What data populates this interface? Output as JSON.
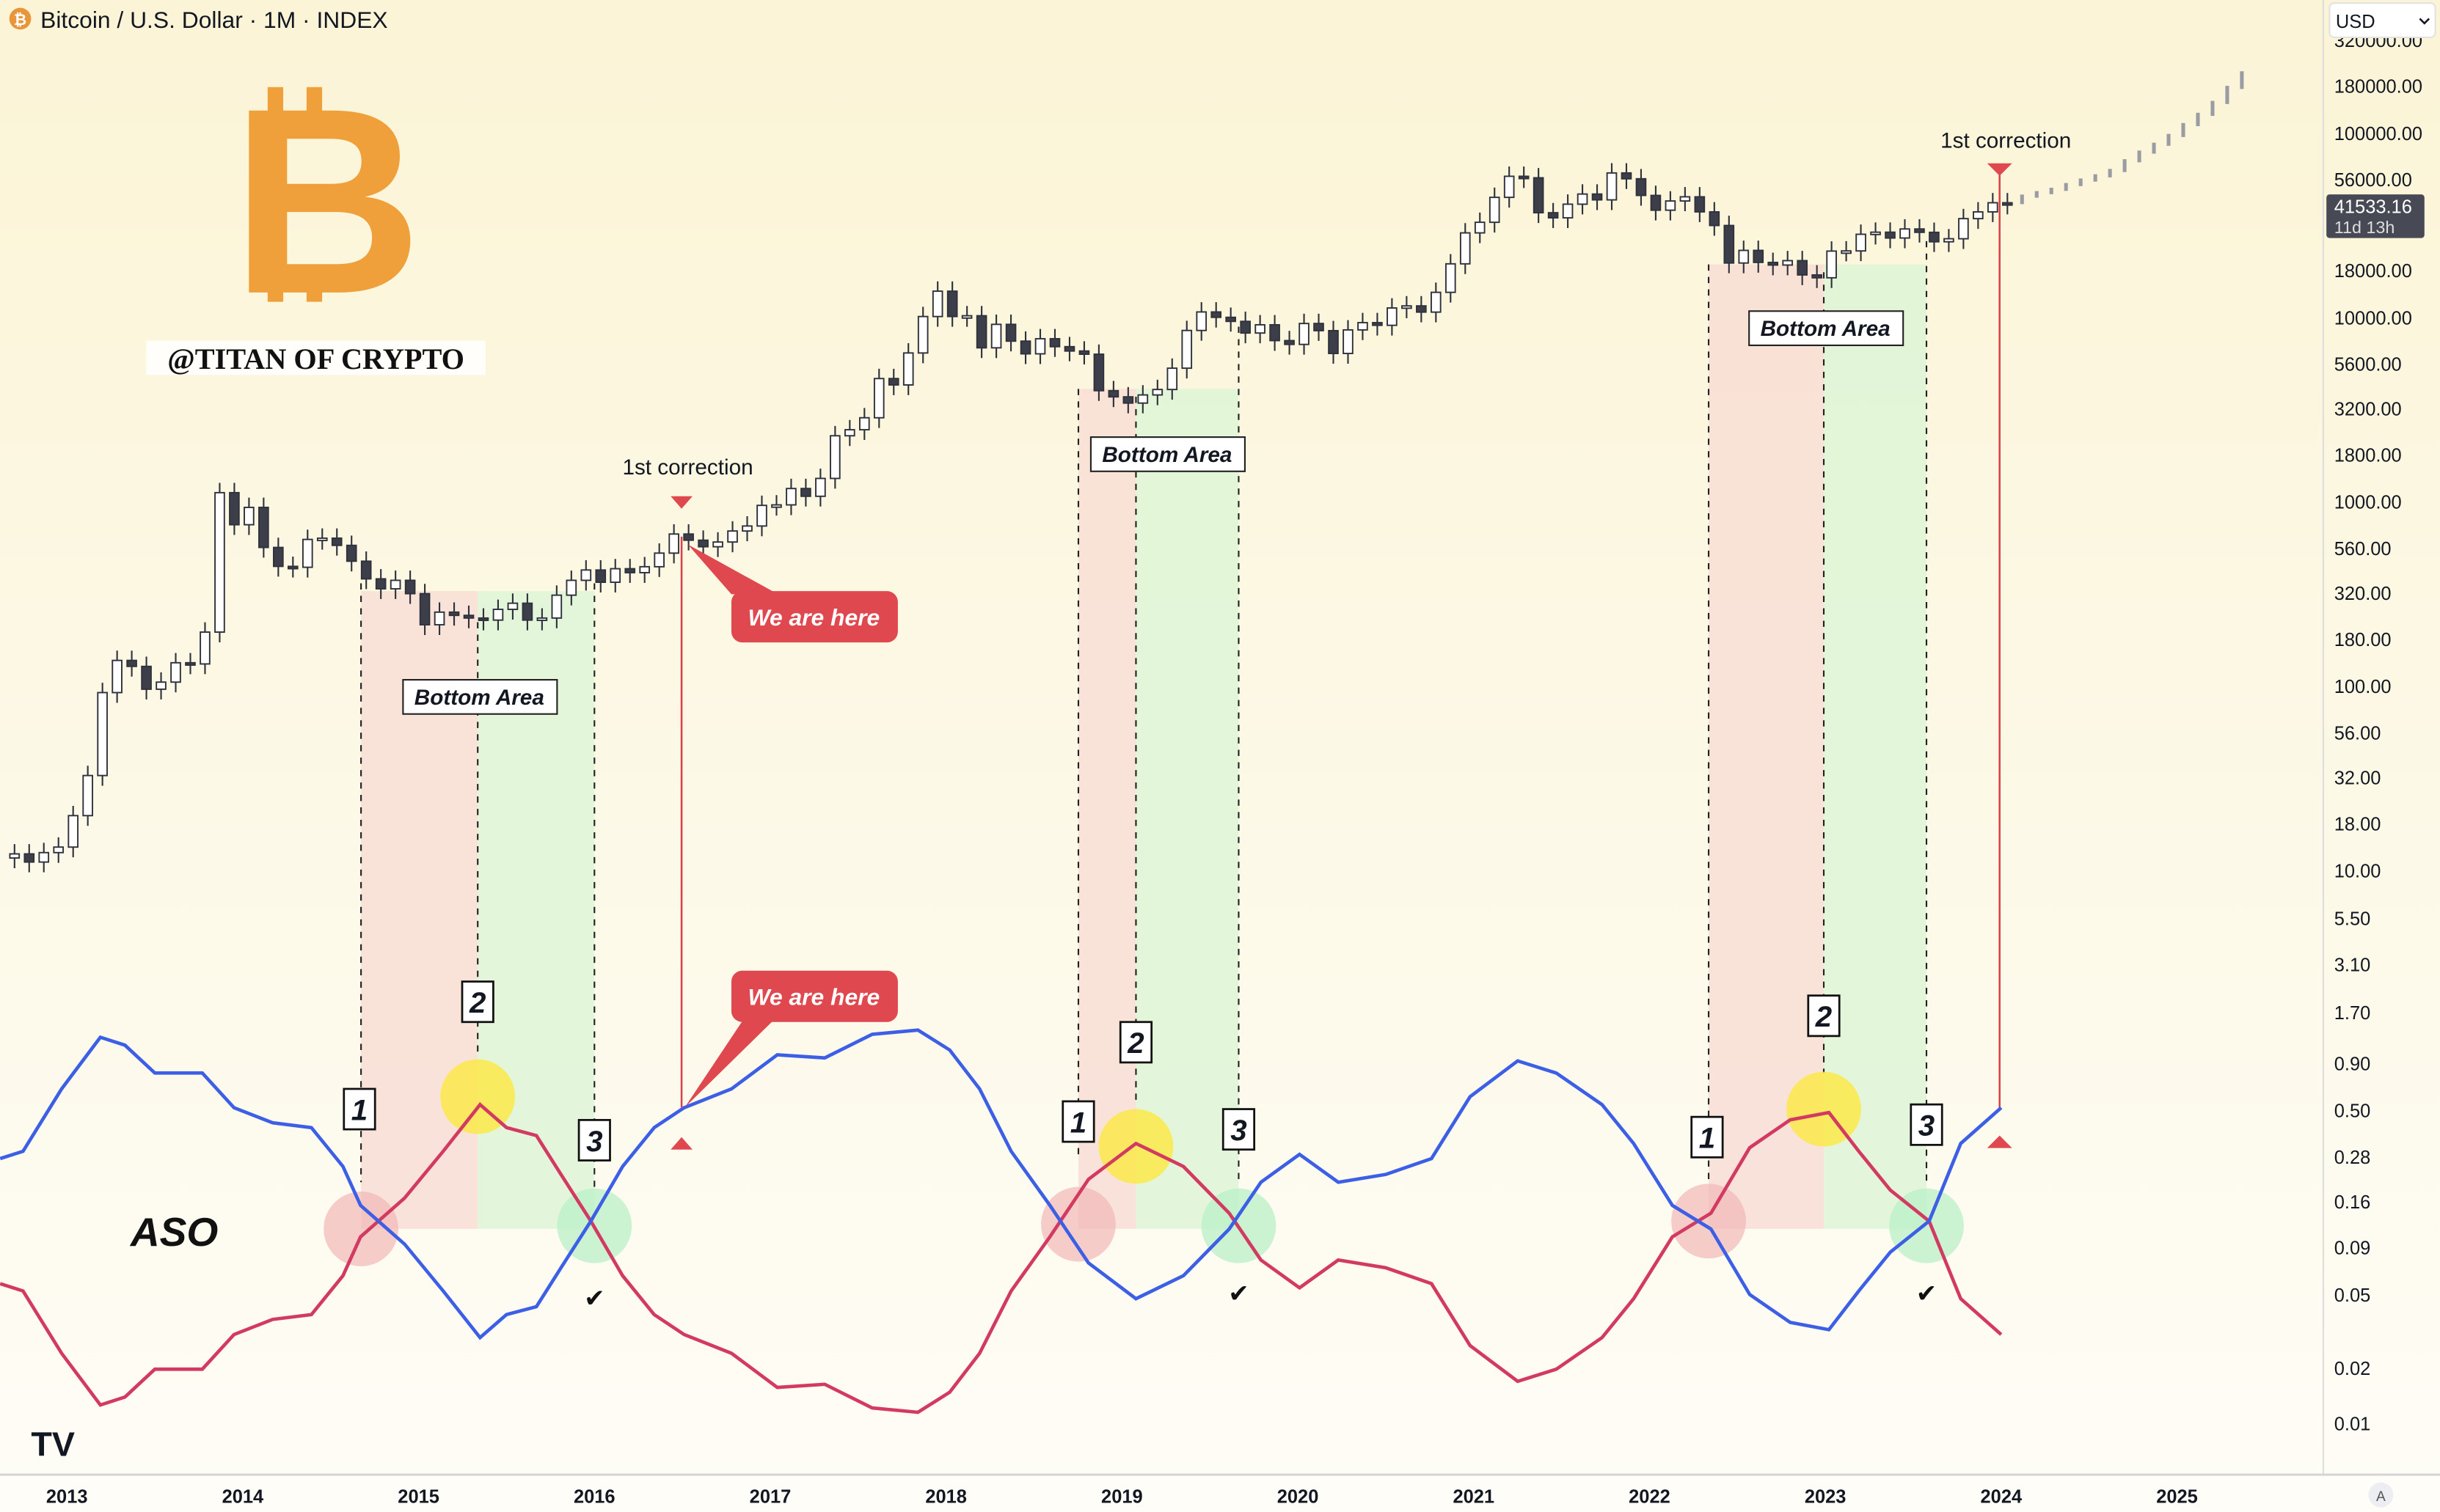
{
  "header": {
    "symbol_title": "Bitcoin / U.S. Dollar · 1M · INDEX",
    "symbol_icon": "bitcoin-icon"
  },
  "currency_select": {
    "value": "USD"
  },
  "branding": {
    "logo_letter": "B",
    "handle": "@TITAN OF CRYPTO"
  },
  "indicator_label": "ASO",
  "price_tag": {
    "price": "41533.16",
    "countdown": "11d 13h"
  },
  "colors": {
    "bulls": "#3d5fe6",
    "bears": "#d33a62",
    "alert": "#e0484f",
    "bear_zone": "#f8d9d3",
    "bull_zone": "#d9f5d6",
    "up_candle": "#ffffff",
    "down_candle": "#3c3f4a",
    "background": "#fbf5d8"
  },
  "annotations": {
    "first_correction": "1st correction",
    "we_are_here": "We are here",
    "bottom_area": "Bottom Area",
    "steps": [
      "1",
      "2",
      "3"
    ],
    "check": "✔"
  },
  "chart_data": {
    "type": "candlestick",
    "scale": "log",
    "price_axis_labels": [
      "320000.00",
      "180000.00",
      "100000.00",
      "56000.00",
      "18000.00",
      "10000.00",
      "5600.00",
      "3200.00",
      "1800.00",
      "1000.00",
      "560.00",
      "320.00",
      "180.00",
      "100.00",
      "56.00",
      "32.00",
      "18.00",
      "10.00",
      "5.50",
      "3.10",
      "1.70",
      "0.90",
      "0.50",
      "0.28",
      "0.16",
      "0.09",
      "0.05",
      "0.02",
      "0.01"
    ],
    "time_axis_labels": [
      "2013",
      "2014",
      "2015",
      "2016",
      "2017",
      "2018",
      "2019",
      "2020",
      "2021",
      "2022",
      "2023",
      "2024",
      "2025"
    ],
    "monthly_start": "2012-09",
    "monthly_closes": [
      12.4,
      11.2,
      12.6,
      13.5,
      20,
      33,
      93,
      139,
      129,
      97,
      106,
      135,
      133,
      198,
      1130,
      757,
      940,
      570,
      450,
      445,
      630,
      640,
      585,
      480,
      385,
      340,
      378,
      320,
      217,
      254,
      244,
      236,
      230,
      263,
      284,
      230,
      236,
      314,
      378,
      430,
      369,
      437,
      416,
      448,
      531,
      674,
      624,
      575,
      610,
      700,
      745,
      964,
      970,
      1190,
      1080,
      1350,
      2300,
      2480,
      2880,
      4700,
      4340,
      6470,
      10200,
      14000,
      10200,
      10300,
      6900,
      9250,
      7500,
      6400,
      7730,
      7000,
      6630,
      6370,
      4040,
      3740,
      3460,
      3830,
      4100,
      5350,
      8570,
      10800,
      10100,
      9600,
      8300,
      9200,
      7550,
      7200,
      9350,
      8550,
      6430,
      8630,
      9450,
      9140,
      11350,
      11650,
      10780,
      13800,
      19700,
      29000,
      33100,
      45200,
      58800,
      57700,
      37300,
      35000,
      41500,
      47100,
      43800,
      61300,
      57000,
      46300,
      38500,
      43200,
      45500,
      37700,
      31800,
      19900,
      23300,
      20050,
      19400,
      20500,
      17150,
      16550,
      23100,
      23150,
      28500,
      29250,
      27200,
      30450,
      29200,
      25950,
      26950,
      34650,
      37700,
      42250,
      41533
    ],
    "projection_closes": [
      45000,
      47000,
      49000,
      52000,
      55000,
      58000,
      62000,
      70000,
      78000,
      86000,
      96000,
      110000,
      125000,
      145000,
      175000,
      210000
    ],
    "aso": {
      "dates": [
        2012.62,
        2012.75,
        2012.97,
        2013.19,
        2013.33,
        2013.5,
        2013.77,
        2013.95,
        2014.17,
        2014.39,
        2014.57,
        2014.67,
        2014.92,
        2015.14,
        2015.35,
        2015.5,
        2015.67,
        2015.81,
        2015.98,
        2016.16,
        2016.34,
        2016.51,
        2016.78,
        2017.04,
        2017.31,
        2017.58,
        2017.84,
        2018.02,
        2018.19,
        2018.37,
        2018.59,
        2018.81,
        2019.08,
        2019.35,
        2019.61,
        2019.79,
        2020.01,
        2020.23,
        2020.5,
        2020.76,
        2020.98,
        2021.25,
        2021.47,
        2021.73,
        2021.91,
        2022.13,
        2022.35,
        2022.57,
        2022.8,
        2023.02,
        2023.19,
        2023.37,
        2023.59,
        2023.77,
        2024.0
      ],
      "bulls": [
        60.3,
        61.5,
        71.8,
        80.3,
        79.0,
        74.4,
        74.4,
        68.7,
        66.2,
        65.4,
        59.0,
        52.6,
        46.2,
        38.5,
        30.8,
        34.6,
        35.9,
        42.3,
        50.0,
        59.0,
        65.4,
        68.7,
        71.8,
        77.4,
        76.9,
        80.8,
        81.5,
        78.2,
        71.8,
        61.5,
        52.6,
        43.1,
        37.2,
        41.0,
        48.7,
        56.4,
        61.0,
        56.4,
        57.7,
        60.3,
        70.5,
        76.4,
        74.4,
        69.2,
        62.8,
        52.6,
        48.7,
        37.9,
        33.3,
        32.1,
        38.5,
        44.9,
        50.0,
        62.8,
        68.7
      ],
      "bears": [
        39.7,
        38.5,
        28.2,
        19.7,
        21.0,
        25.6,
        25.6,
        31.3,
        33.8,
        34.6,
        41.0,
        47.4,
        53.8,
        61.5,
        69.2,
        65.4,
        64.1,
        57.7,
        50.0,
        41.0,
        34.6,
        31.3,
        28.2,
        22.6,
        23.1,
        19.2,
        18.5,
        21.8,
        28.2,
        38.5,
        47.4,
        56.9,
        62.8,
        59.0,
        51.3,
        43.6,
        39.0,
        43.6,
        42.3,
        39.7,
        29.5,
        23.6,
        25.6,
        30.8,
        37.2,
        47.4,
        51.3,
        62.1,
        66.7,
        67.9,
        61.5,
        55.1,
        50.0,
        37.2,
        31.3
      ]
    }
  }
}
